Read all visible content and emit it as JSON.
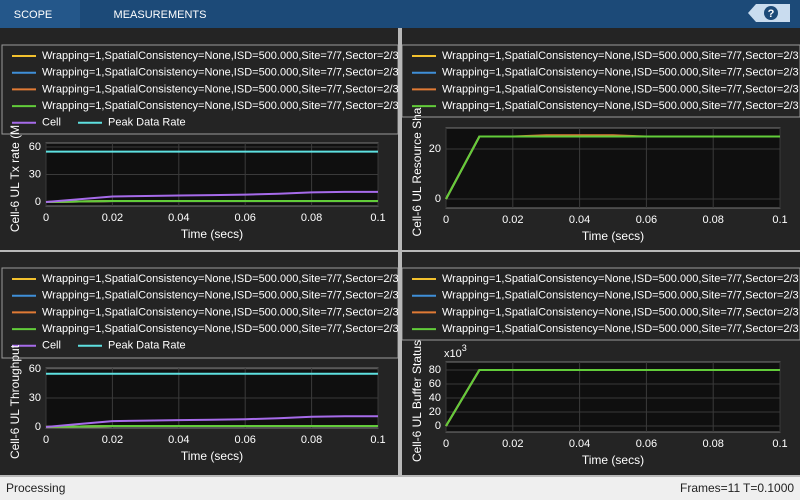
{
  "toolbar": {
    "tabs": [
      "SCOPE",
      "MEASUREMENTS"
    ],
    "help_icon": "?"
  },
  "status": {
    "left": "Processing",
    "frames": "Frames=11",
    "time": "T=0.1000"
  },
  "chart_data": [
    {
      "type": "line",
      "ylabel": "Cell-6 UL Tx rate (M",
      "xlabel": "Time (secs)",
      "x": [
        0,
        0.01,
        0.02,
        0.03,
        0.04,
        0.05,
        0.06,
        0.07,
        0.08,
        0.09,
        0.1
      ],
      "xlim": [
        0,
        0.1
      ],
      "xticks": [
        0,
        0.02,
        0.04,
        0.06,
        0.08,
        0.1
      ],
      "ylim": [
        -4.4,
        64.4
      ],
      "yticks": [
        0,
        30,
        60
      ],
      "grid": true,
      "series": [
        {
          "name": "Wrapping=1,SpatialConsistency=None,ISD=500.000,Site=7/7,Sector=2/3",
          "color": "#f2c12e",
          "values": [
            0,
            0.5,
            1,
            1,
            1,
            1,
            1,
            1,
            1,
            1,
            1
          ]
        },
        {
          "name": "Wrapping=1,SpatialConsistency=None,ISD=500.000,Site=7/7,Sector=2/3",
          "color": "#3f8fd8",
          "values": [
            0,
            0.5,
            1,
            1,
            1,
            1,
            1,
            1,
            1,
            1,
            1
          ]
        },
        {
          "name": "Wrapping=1,SpatialConsistency=None,ISD=500.000,Site=7/7,Sector=2/3",
          "color": "#e07a35",
          "values": [
            0,
            0.5,
            1,
            1,
            1,
            1,
            1,
            1,
            1,
            1,
            1
          ]
        },
        {
          "name": "Wrapping=1,SpatialConsistency=None,ISD=500.000,Site=7/7,Sector=2/3",
          "color": "#62cc3a",
          "values": [
            0,
            0.5,
            1,
            1,
            1,
            1,
            1,
            1,
            1,
            1,
            1
          ]
        },
        {
          "name": "Cell",
          "color": "#a66bea",
          "values": [
            0,
            3,
            6,
            6.5,
            7,
            7.5,
            8,
            9,
            10.5,
            11,
            11
          ]
        },
        {
          "name": "Peak Data Rate",
          "color": "#5ee0e0",
          "values": [
            55,
            55,
            55,
            55,
            55,
            55,
            55,
            55,
            55,
            55,
            55
          ]
        }
      ]
    },
    {
      "type": "line",
      "ylabel": "Cell-6 UL Resource Sha",
      "xlabel": "Time (secs)",
      "x": [
        0,
        0.01,
        0.02,
        0.03,
        0.04,
        0.05,
        0.06,
        0.07,
        0.08,
        0.09,
        0.1
      ],
      "xlim": [
        0,
        0.1
      ],
      "xticks": [
        0,
        0.02,
        0.04,
        0.06,
        0.08,
        0.1
      ],
      "ylim": [
        -3.6,
        28.4
      ],
      "yticks": [
        0,
        20
      ],
      "grid": true,
      "series": [
        {
          "name": "Wrapping=1,SpatialConsistency=None,ISD=500.000,Site=7/7,Sector=2/3",
          "color": "#f2c12e",
          "values": [
            0,
            25,
            25,
            25,
            25,
            25,
            25,
            25,
            25,
            25,
            25
          ]
        },
        {
          "name": "Wrapping=1,SpatialConsistency=None,ISD=500.000,Site=7/7,Sector=2/3",
          "color": "#3f8fd8",
          "values": [
            0,
            25,
            25,
            25,
            25,
            25,
            25,
            25,
            25,
            25,
            25
          ]
        },
        {
          "name": "Wrapping=1,SpatialConsistency=None,ISD=500.000,Site=7/7,Sector=2/3",
          "color": "#e07a35",
          "values": [
            0,
            25,
            25,
            25.5,
            25.5,
            25.5,
            25,
            25,
            25,
            25,
            25
          ]
        },
        {
          "name": "Wrapping=1,SpatialConsistency=None,ISD=500.000,Site=7/7,Sector=2/3",
          "color": "#62cc3a",
          "values": [
            0,
            25,
            25,
            25,
            25,
            25,
            25,
            25,
            25,
            25,
            25
          ]
        }
      ]
    },
    {
      "type": "line",
      "ylabel": "Cell-6 UL Throughput",
      "xlabel": "Time (secs)",
      "x": [
        0,
        0.01,
        0.02,
        0.03,
        0.04,
        0.05,
        0.06,
        0.07,
        0.08,
        0.09,
        0.1
      ],
      "xlim": [
        0,
        0.1
      ],
      "xticks": [
        0,
        0.02,
        0.04,
        0.06,
        0.08,
        0.1
      ],
      "ylim": [
        -1.1,
        61
      ],
      "yticks": [
        0,
        30,
        60
      ],
      "grid": true,
      "series": [
        {
          "name": "Wrapping=1,SpatialConsistency=None,ISD=500.000,Site=7/7,Sector=2/3",
          "color": "#f2c12e",
          "values": [
            0,
            0.5,
            1,
            1,
            1,
            1,
            1,
            1,
            1,
            1,
            1
          ]
        },
        {
          "name": "Wrapping=1,SpatialConsistency=None,ISD=500.000,Site=7/7,Sector=2/3",
          "color": "#3f8fd8",
          "values": [
            0,
            0.5,
            1,
            1,
            1,
            1,
            1,
            1,
            1,
            1,
            1
          ]
        },
        {
          "name": "Wrapping=1,SpatialConsistency=None,ISD=500.000,Site=7/7,Sector=2/3",
          "color": "#e07a35",
          "values": [
            0,
            0.5,
            1,
            1,
            1,
            1,
            1,
            1,
            1,
            1,
            1
          ]
        },
        {
          "name": "Wrapping=1,SpatialConsistency=None,ISD=500.000,Site=7/7,Sector=2/3",
          "color": "#62cc3a",
          "values": [
            0,
            0.5,
            1,
            1,
            1,
            1,
            1,
            1,
            1,
            1,
            1
          ]
        },
        {
          "name": "Cell",
          "color": "#a66bea",
          "values": [
            0,
            3,
            6,
            6.5,
            7,
            7.5,
            8,
            9,
            10.5,
            11,
            11
          ]
        },
        {
          "name": "Peak Data Rate",
          "color": "#5ee0e0",
          "values": [
            55,
            55,
            55,
            55,
            55,
            55,
            55,
            55,
            55,
            55,
            55
          ]
        }
      ]
    },
    {
      "type": "line",
      "ylabel": "Cell-6 UL Buffer Status",
      "xlabel": "Time (secs)",
      "y_multiplier": "x10",
      "y_multiplier_exponent": "3",
      "x": [
        0,
        0.01,
        0.02,
        0.03,
        0.04,
        0.05,
        0.06,
        0.07,
        0.08,
        0.09,
        0.1
      ],
      "xlim": [
        0,
        0.1
      ],
      "xticks": [
        0,
        0.02,
        0.04,
        0.06,
        0.08,
        0.1
      ],
      "ylim": [
        -8.6,
        91.4
      ],
      "yticks": [
        0,
        20,
        40,
        60,
        80
      ],
      "grid": true,
      "series": [
        {
          "name": "Wrapping=1,SpatialConsistency=None,ISD=500.000,Site=7/7,Sector=2/3",
          "color": "#f2c12e",
          "values": [
            0,
            80,
            80,
            80,
            80,
            80,
            80,
            80,
            80,
            80,
            80
          ]
        },
        {
          "name": "Wrapping=1,SpatialConsistency=None,ISD=500.000,Site=7/7,Sector=2/3",
          "color": "#3f8fd8",
          "values": [
            0,
            80,
            80,
            80,
            80,
            80,
            80,
            80,
            80,
            80,
            80
          ]
        },
        {
          "name": "Wrapping=1,SpatialConsistency=None,ISD=500.000,Site=7/7,Sector=2/3",
          "color": "#e07a35",
          "values": [
            0,
            80,
            80,
            80,
            80,
            80,
            80,
            80,
            80,
            80,
            80
          ]
        },
        {
          "name": "Wrapping=1,SpatialConsistency=None,ISD=500.000,Site=7/7,Sector=2/3",
          "color": "#62cc3a",
          "values": [
            0,
            80,
            80,
            80,
            80,
            80,
            80,
            80,
            80,
            80,
            80
          ]
        }
      ]
    }
  ]
}
